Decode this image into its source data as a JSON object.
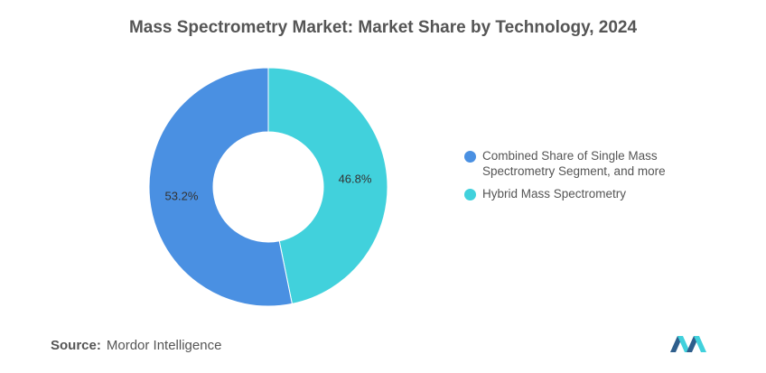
{
  "chart_data": {
    "type": "pie",
    "title": "Mass Spectrometry Market: Market Share by Technology, 2024",
    "slices": [
      {
        "label": "Hybrid Mass Spectrometry",
        "value": 46.8,
        "value_label": "46.8%",
        "color": "#41D1DC"
      },
      {
        "label": "Combined Share of Single Mass Spectrometry Segment, and more",
        "value": 53.2,
        "value_label": "53.2%",
        "color": "#4A90E2"
      }
    ],
    "legend": [
      {
        "label": "Combined Share of Single Mass Spectrometry Segment, and more",
        "color": "#4A90E2"
      },
      {
        "label": "Hybrid Mass Spectrometry",
        "color": "#41D1DC"
      }
    ],
    "legend_position": "right",
    "donut": true
  },
  "source": {
    "label": "Source:",
    "text": "Mordor Intelligence"
  },
  "logo": {
    "name": "mordor-intelligence-logo-icon",
    "colors": [
      "#2E5E8C",
      "#41D1DC"
    ]
  }
}
